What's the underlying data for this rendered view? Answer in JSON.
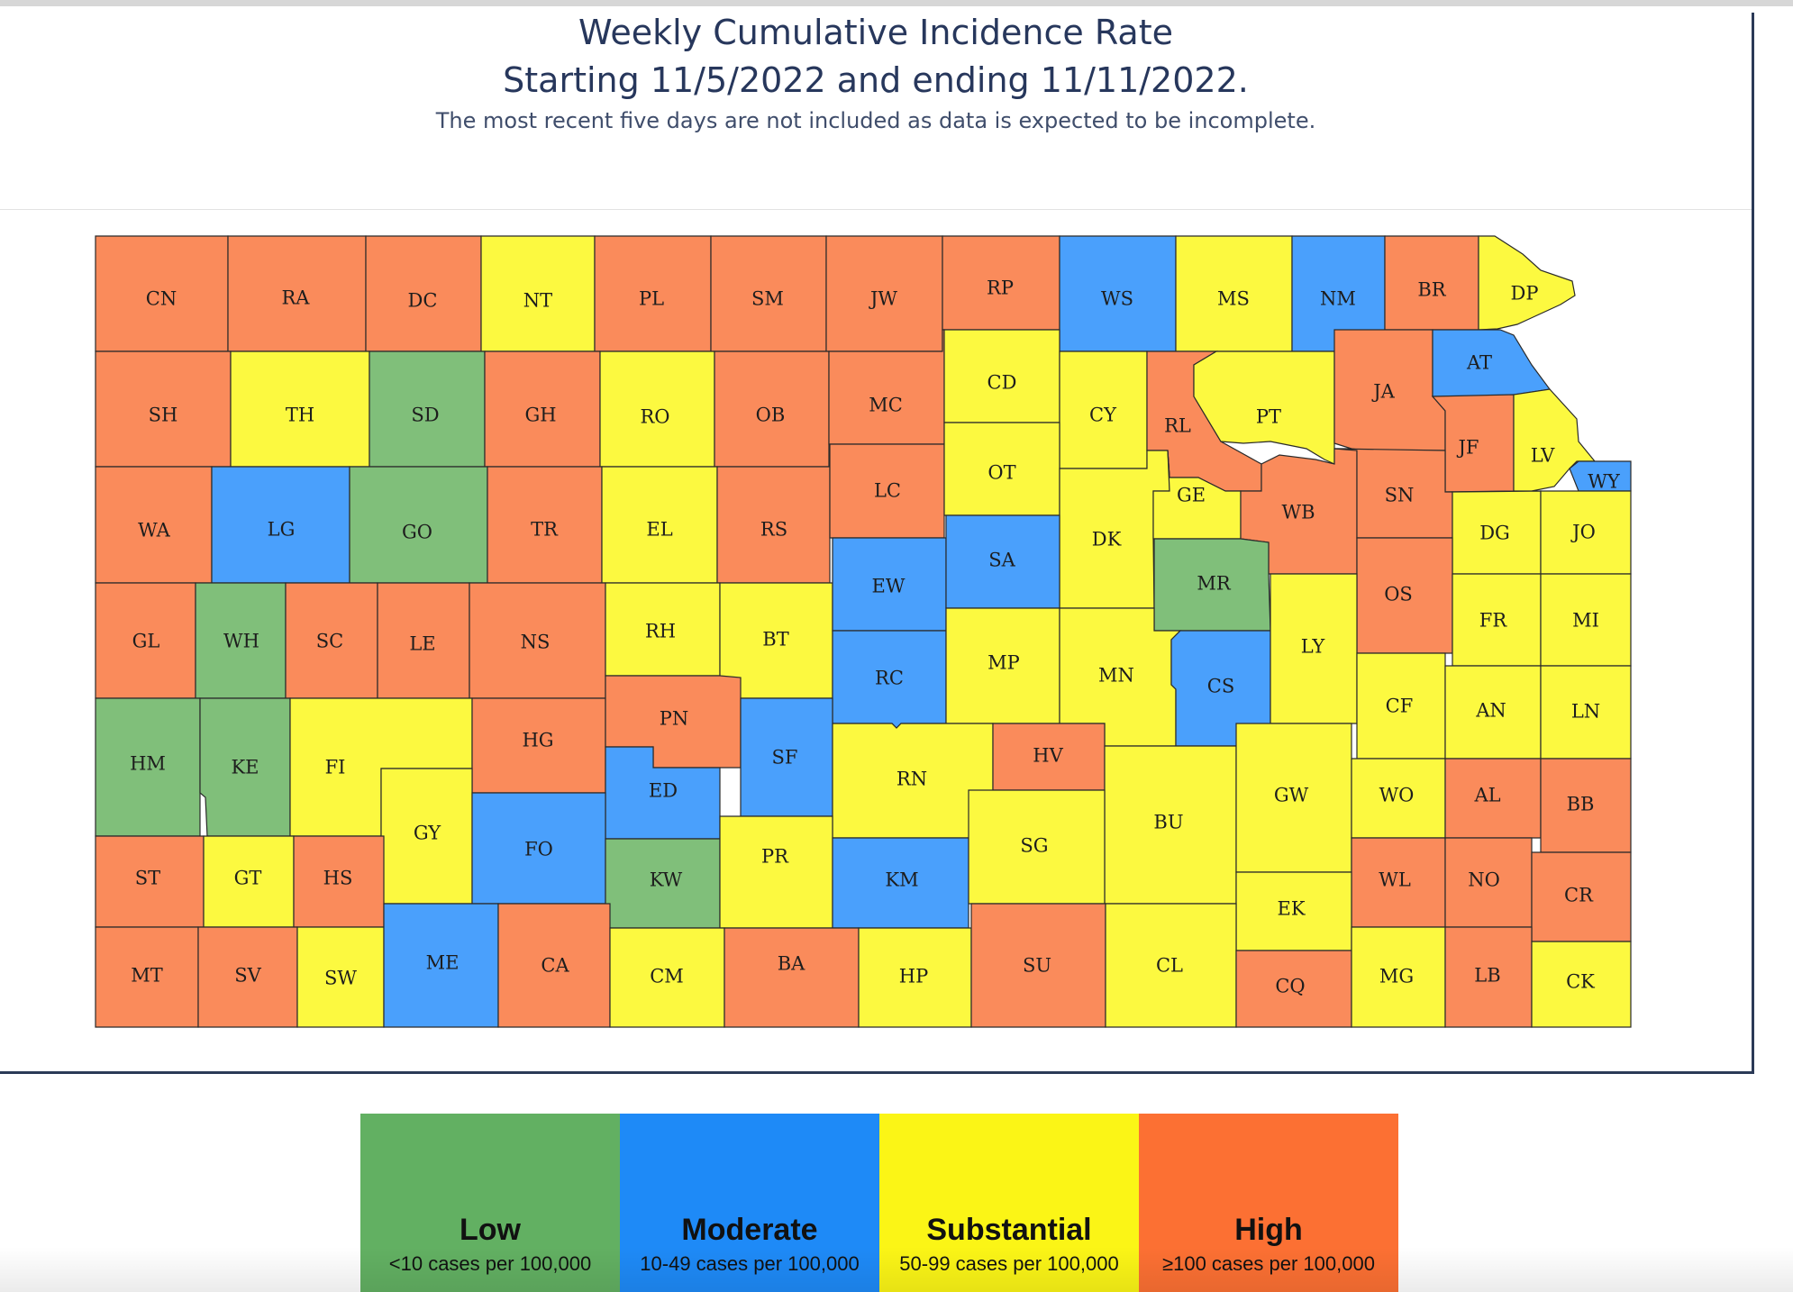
{
  "title_line1": "Weekly Cumulative Incidence Rate",
  "title_line2": "Starting 11/5/2022 and ending 11/11/2022.",
  "subtitle": "The most recent five days are not included as data is expected to be incomplete.",
  "levels": {
    "low": {
      "label": "Low",
      "range": "<10 cases per 100,000",
      "map_color": "#80bf7a",
      "legend_color": "#62b062"
    },
    "moderate": {
      "label": "Moderate",
      "range": "10-49 cases per 100,000",
      "map_color": "#4aa0fc",
      "legend_color": "#1e8af7"
    },
    "substantial": {
      "label": "Substantial",
      "range": "50-99 cases per 100,000",
      "map_color": "#fcf940",
      "legend_color": "#fbf516"
    },
    "high": {
      "label": "High",
      "range": "≥100 cases per 100,000",
      "map_color": "#fa8b5b",
      "legend_color": "#fc7033"
    }
  },
  "counties": [
    {
      "abbr": "CN",
      "level": "high"
    },
    {
      "abbr": "RA",
      "level": "high"
    },
    {
      "abbr": "DC",
      "level": "high"
    },
    {
      "abbr": "NT",
      "level": "substantial"
    },
    {
      "abbr": "PL",
      "level": "high"
    },
    {
      "abbr": "SM",
      "level": "high"
    },
    {
      "abbr": "JW",
      "level": "high"
    },
    {
      "abbr": "RP",
      "level": "high"
    },
    {
      "abbr": "WS",
      "level": "moderate"
    },
    {
      "abbr": "MS",
      "level": "substantial"
    },
    {
      "abbr": "NM",
      "level": "moderate"
    },
    {
      "abbr": "BR",
      "level": "high"
    },
    {
      "abbr": "DP",
      "level": "substantial"
    },
    {
      "abbr": "SH",
      "level": "high"
    },
    {
      "abbr": "TH",
      "level": "substantial"
    },
    {
      "abbr": "SD",
      "level": "low"
    },
    {
      "abbr": "GH",
      "level": "high"
    },
    {
      "abbr": "RO",
      "level": "substantial"
    },
    {
      "abbr": "OB",
      "level": "high"
    },
    {
      "abbr": "MC",
      "level": "high"
    },
    {
      "abbr": "CD",
      "level": "substantial"
    },
    {
      "abbr": "CY",
      "level": "substantial"
    },
    {
      "abbr": "RL",
      "level": "high"
    },
    {
      "abbr": "PT",
      "level": "substantial"
    },
    {
      "abbr": "JA",
      "level": "high"
    },
    {
      "abbr": "AT",
      "level": "moderate"
    },
    {
      "abbr": "JF",
      "level": "high"
    },
    {
      "abbr": "LV",
      "level": "substantial"
    },
    {
      "abbr": "WY",
      "level": "moderate"
    },
    {
      "abbr": "WA",
      "level": "high"
    },
    {
      "abbr": "LG",
      "level": "moderate"
    },
    {
      "abbr": "GO",
      "level": "low"
    },
    {
      "abbr": "TR",
      "level": "high"
    },
    {
      "abbr": "EL",
      "level": "substantial"
    },
    {
      "abbr": "RS",
      "level": "high"
    },
    {
      "abbr": "LC",
      "level": "high"
    },
    {
      "abbr": "OT",
      "level": "substantial"
    },
    {
      "abbr": "DK",
      "level": "substantial"
    },
    {
      "abbr": "GE",
      "level": "substantial"
    },
    {
      "abbr": "WB",
      "level": "high"
    },
    {
      "abbr": "SN",
      "level": "high"
    },
    {
      "abbr": "DG",
      "level": "substantial"
    },
    {
      "abbr": "JO",
      "level": "substantial"
    },
    {
      "abbr": "GL",
      "level": "high"
    },
    {
      "abbr": "WH",
      "level": "low"
    },
    {
      "abbr": "SC",
      "level": "high"
    },
    {
      "abbr": "LE",
      "level": "high"
    },
    {
      "abbr": "NS",
      "level": "high"
    },
    {
      "abbr": "RH",
      "level": "substantial"
    },
    {
      "abbr": "BT",
      "level": "substantial"
    },
    {
      "abbr": "EW",
      "level": "moderate"
    },
    {
      "abbr": "SA",
      "level": "moderate"
    },
    {
      "abbr": "MR",
      "level": "low"
    },
    {
      "abbr": "OS",
      "level": "high"
    },
    {
      "abbr": "FR",
      "level": "substantial"
    },
    {
      "abbr": "MI",
      "level": "substantial"
    },
    {
      "abbr": "RC",
      "level": "moderate"
    },
    {
      "abbr": "MP",
      "level": "substantial"
    },
    {
      "abbr": "MN",
      "level": "substantial"
    },
    {
      "abbr": "CS",
      "level": "moderate"
    },
    {
      "abbr": "LY",
      "level": "substantial"
    },
    {
      "abbr": "CF",
      "level": "substantial"
    },
    {
      "abbr": "AN",
      "level": "substantial"
    },
    {
      "abbr": "LN",
      "level": "substantial"
    },
    {
      "abbr": "HM",
      "level": "low"
    },
    {
      "abbr": "KE",
      "level": "low"
    },
    {
      "abbr": "FI",
      "level": "substantial"
    },
    {
      "abbr": "HG",
      "level": "high"
    },
    {
      "abbr": "PN",
      "level": "high"
    },
    {
      "abbr": "SF",
      "level": "moderate"
    },
    {
      "abbr": "ED",
      "level": "moderate"
    },
    {
      "abbr": "RN",
      "level": "substantial"
    },
    {
      "abbr": "HV",
      "level": "high"
    },
    {
      "abbr": "BU",
      "level": "substantial"
    },
    {
      "abbr": "GW",
      "level": "substantial"
    },
    {
      "abbr": "WO",
      "level": "substantial"
    },
    {
      "abbr": "AL",
      "level": "high"
    },
    {
      "abbr": "BB",
      "level": "high"
    },
    {
      "abbr": "GY",
      "level": "substantial"
    },
    {
      "abbr": "FO",
      "level": "moderate"
    },
    {
      "abbr": "KW",
      "level": "low"
    },
    {
      "abbr": "PR",
      "level": "substantial"
    },
    {
      "abbr": "KM",
      "level": "moderate"
    },
    {
      "abbr": "SG",
      "level": "substantial"
    },
    {
      "abbr": "ST",
      "level": "high"
    },
    {
      "abbr": "GT",
      "level": "substantial"
    },
    {
      "abbr": "HS",
      "level": "high"
    },
    {
      "abbr": "WL",
      "level": "high"
    },
    {
      "abbr": "NO",
      "level": "high"
    },
    {
      "abbr": "CR",
      "level": "high"
    },
    {
      "abbr": "EK",
      "level": "substantial"
    },
    {
      "abbr": "MT",
      "level": "high"
    },
    {
      "abbr": "SV",
      "level": "high"
    },
    {
      "abbr": "SW",
      "level": "substantial"
    },
    {
      "abbr": "ME",
      "level": "moderate"
    },
    {
      "abbr": "CA",
      "level": "high"
    },
    {
      "abbr": "CM",
      "level": "substantial"
    },
    {
      "abbr": "BA",
      "level": "high"
    },
    {
      "abbr": "HP",
      "level": "substantial"
    },
    {
      "abbr": "SU",
      "level": "high"
    },
    {
      "abbr": "CL",
      "level": "substantial"
    },
    {
      "abbr": "CQ",
      "level": "high"
    },
    {
      "abbr": "MG",
      "level": "substantial"
    },
    {
      "abbr": "LB",
      "level": "high"
    },
    {
      "abbr": "CK",
      "level": "substantial"
    }
  ]
}
